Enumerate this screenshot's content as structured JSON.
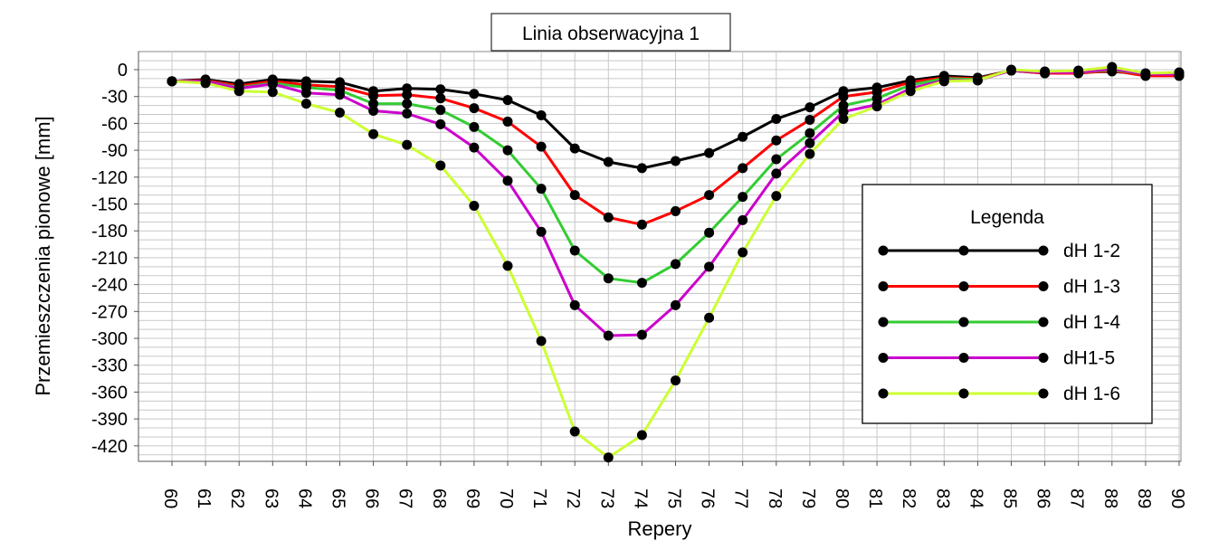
{
  "chart_data": {
    "type": "line",
    "title": "Linia obserwacyjna 1",
    "xlabel": "Repery",
    "ylabel": "Przemieszczenia pionowe [mm]",
    "categories": [
      "60",
      "61",
      "62",
      "63",
      "64",
      "65",
      "66",
      "67",
      "68",
      "69",
      "70",
      "71",
      "72",
      "73",
      "74",
      "75",
      "76",
      "77",
      "78",
      "79",
      "80",
      "81",
      "82",
      "83",
      "84",
      "85",
      "86",
      "87",
      "88",
      "89",
      "90"
    ],
    "ylim": [
      -430,
      15
    ],
    "y_ticks": [
      0,
      -30,
      -60,
      -90,
      -120,
      -150,
      -180,
      -210,
      -240,
      -270,
      -300,
      -330,
      -360,
      -390,
      -420
    ],
    "grid": true,
    "legend": {
      "title": "Legenda",
      "position": "right"
    },
    "series": [
      {
        "name": "dH 1-2",
        "color": "#000000",
        "values": [
          -13,
          -11,
          -16,
          -11,
          -13,
          -14,
          -24,
          -21,
          -22,
          -27,
          -34,
          -51,
          -88,
          -103,
          -110,
          -102,
          -93,
          -75,
          -55,
          -42,
          -24,
          -20,
          -12,
          -7,
          -9,
          -1,
          -4,
          -3,
          -2,
          -5,
          -6
        ]
      },
      {
        "name": "dH 1-3",
        "color": "#ff0000",
        "values": [
          -13,
          -12,
          -18,
          -13,
          -17,
          -19,
          -29,
          -28,
          -32,
          -43,
          -58,
          -86,
          -140,
          -165,
          -173,
          -158,
          -140,
          -110,
          -79,
          -56,
          -30,
          -25,
          -14,
          -9,
          -10,
          -1,
          -4,
          -4,
          -1,
          -7,
          -7
        ]
      },
      {
        "name": "dH 1-4",
        "color": "#33cc33",
        "values": [
          -13,
          -13,
          -20,
          -15,
          -20,
          -23,
          -38,
          -38,
          -45,
          -64,
          -90,
          -133,
          -202,
          -233,
          -238,
          -217,
          -182,
          -142,
          -100,
          -71,
          -40,
          -32,
          -17,
          -10,
          -11,
          -1,
          -3,
          -3,
          0,
          -5,
          -5
        ]
      },
      {
        "name": "dH1-5",
        "color": "#cc00cc",
        "values": [
          -13,
          -13,
          -21,
          -16,
          -26,
          -28,
          -46,
          -49,
          -61,
          -87,
          -124,
          -181,
          -263,
          -297,
          -296,
          -263,
          -220,
          -168,
          -116,
          -82,
          -47,
          -39,
          -21,
          -12,
          -12,
          -1,
          -3,
          -3,
          1,
          -5,
          -5
        ]
      },
      {
        "name": "dH 1-6",
        "color": "#ccff33",
        "values": [
          -13,
          -15,
          -24,
          -25,
          -38,
          -48,
          -72,
          -84,
          -107,
          -152,
          -219,
          -303,
          -404,
          -433,
          -408,
          -347,
          -277,
          -204,
          -141,
          -94,
          -55,
          -41,
          -24,
          -13,
          -12,
          0,
          -2,
          -1,
          3,
          -4,
          -3
        ]
      }
    ]
  }
}
